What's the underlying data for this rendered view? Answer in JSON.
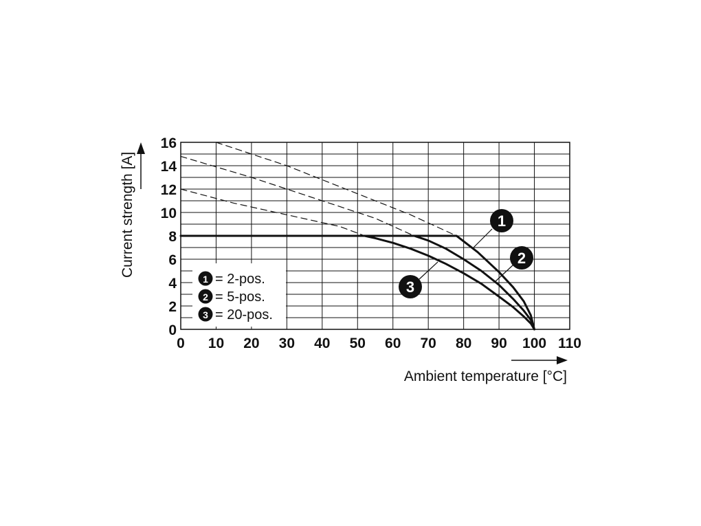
{
  "chart_data": {
    "type": "line",
    "xlabel": "Ambient temperature [°C]",
    "ylabel": "Current strength [A]",
    "xlim": [
      0,
      110
    ],
    "ylim": [
      0,
      16
    ],
    "x_ticks": [
      0,
      10,
      20,
      30,
      40,
      50,
      60,
      70,
      80,
      90,
      100,
      110
    ],
    "y_ticks": [
      0,
      2,
      4,
      6,
      8,
      10,
      12,
      14,
      16
    ],
    "grid": true,
    "legend_position": "bottom-left",
    "legend": [
      {
        "marker": "1",
        "label": "= 2-pos."
      },
      {
        "marker": "2",
        "label": "= 5-pos."
      },
      {
        "marker": "3",
        "label": "= 20-pos."
      }
    ],
    "series": [
      {
        "marker": "1",
        "style": "solid",
        "x": [
          0,
          10,
          20,
          30,
          40,
          50,
          60,
          70,
          78,
          84,
          90,
          94,
          97,
          99,
          100
        ],
        "y": [
          8,
          8,
          8,
          8,
          8,
          8,
          8,
          8,
          8,
          6.6,
          4.9,
          3.6,
          2.4,
          1.2,
          0
        ]
      },
      {
        "marker": "2",
        "style": "solid",
        "x": [
          66,
          70,
          75,
          80,
          85,
          90,
          94,
          97,
          99,
          100
        ],
        "y": [
          8,
          7.6,
          6.9,
          6.0,
          5.0,
          3.8,
          2.6,
          1.6,
          0.8,
          0
        ]
      },
      {
        "marker": "3",
        "style": "solid",
        "x": [
          52,
          55,
          60,
          65,
          70,
          75,
          80,
          85,
          90,
          94,
          97,
          99,
          100
        ],
        "y": [
          8,
          7.8,
          7.4,
          6.9,
          6.3,
          5.6,
          4.8,
          3.9,
          2.8,
          1.9,
          1.1,
          0.5,
          0
        ]
      },
      {
        "marker": "1",
        "style": "dashed",
        "x": [
          10,
          30,
          50,
          65,
          78
        ],
        "y": [
          16,
          14,
          11.6,
          9.8,
          8
        ]
      },
      {
        "marker": "2",
        "style": "dashed",
        "x": [
          0,
          20,
          40,
          55,
          66
        ],
        "y": [
          14.8,
          13,
          11,
          9.5,
          8
        ]
      },
      {
        "marker": "3",
        "style": "dashed",
        "x": [
          0,
          15,
          30,
          45,
          52
        ],
        "y": [
          12,
          10.8,
          9.8,
          8.8,
          8
        ]
      }
    ]
  }
}
